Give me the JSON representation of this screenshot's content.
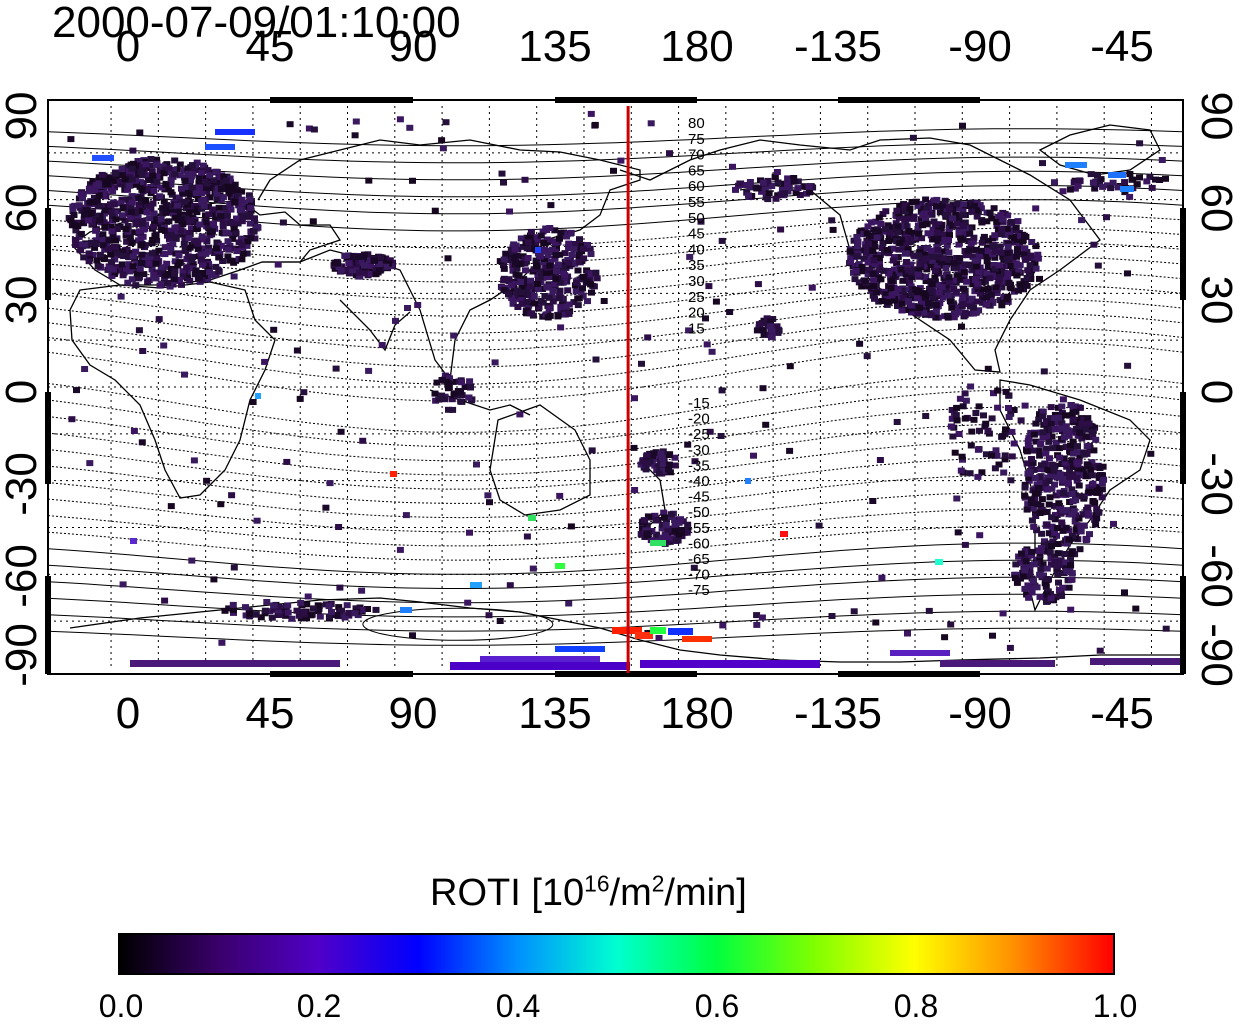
{
  "title": "2000-07-09/01:10:00",
  "x_axis_top_ticks": [
    "0",
    "45",
    "90",
    "135",
    "180",
    "-135",
    "-90",
    "-45"
  ],
  "x_axis_bottom_ticks": [
    "0",
    "45",
    "90",
    "135",
    "180",
    "-135",
    "-90",
    "-45"
  ],
  "y_axis_left_ticks": [
    "90",
    "60",
    "30",
    "0",
    "-30",
    "-60",
    "-90"
  ],
  "y_axis_right_ticks": [
    "90",
    "60",
    "30",
    "0",
    "-30",
    "-60",
    "-90"
  ],
  "magnetic_latitude_labels_north": [
    "80",
    "75",
    "70",
    "65",
    "60",
    "55",
    "50",
    "45",
    "40",
    "35",
    "30",
    "25",
    "20",
    "15"
  ],
  "magnetic_latitude_labels_south": [
    "-15",
    "-20",
    "-25",
    "-30",
    "-35",
    "-40",
    "-45",
    "-50",
    "-55",
    "-60",
    "-65",
    "-70",
    "-75"
  ],
  "colorbar": {
    "title_prefix": "ROTI  [10",
    "title_exp1": "16",
    "title_mid": "/m",
    "title_exp2": "2",
    "title_suffix": "/min]",
    "ticks": [
      "0.0",
      "0.2",
      "0.4",
      "0.6",
      "0.8",
      "1.0"
    ],
    "range": [
      0.0,
      1.0
    ],
    "colors": [
      "#000000",
      "#3a006b",
      "#5000c8",
      "#0000ff",
      "#0090ff",
      "#00ffd0",
      "#00ff40",
      "#80ff00",
      "#ffff00",
      "#ff9000",
      "#ff0000"
    ]
  },
  "map": {
    "projection": "equirectangular",
    "lon_range_display": [
      -20,
      340
    ],
    "lat_range": [
      -90,
      90
    ],
    "terminator_longitude": 164,
    "terminator_color": "#cc0000",
    "gridlines": "dotted"
  }
}
